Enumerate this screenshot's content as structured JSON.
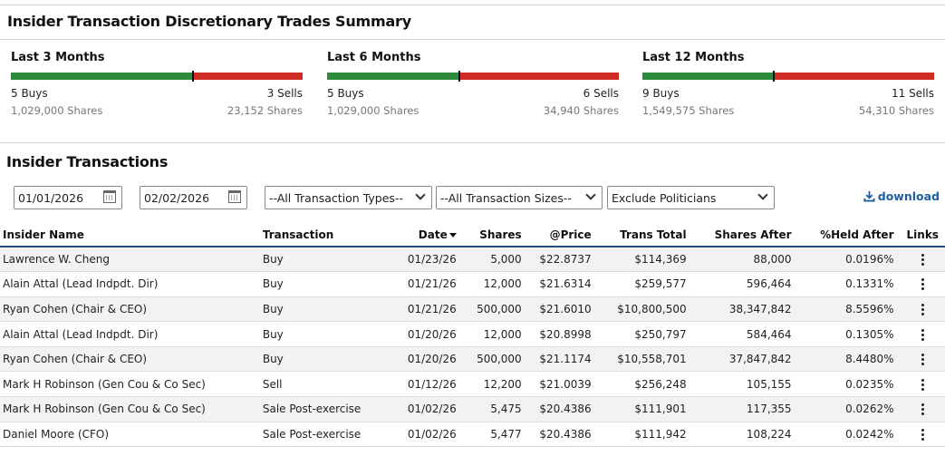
{
  "summary": {
    "title": "Insider Transaction Discretionary Trades Summary",
    "periods": [
      {
        "label": "Last 3 Months",
        "buys": "5 Buys",
        "sells": "3 Sells",
        "buy_shares": "1,029,000 Shares",
        "sell_shares": "23,152 Shares",
        "buy_fraction": 0.625
      },
      {
        "label": "Last 6 Months",
        "buys": "5 Buys",
        "sells": "6 Sells",
        "buy_shares": "1,029,000 Shares",
        "sell_shares": "34,940 Shares",
        "buy_fraction": 0.4545
      },
      {
        "label": "Last 12 Months",
        "buys": "9 Buys",
        "sells": "11 Sells",
        "buy_shares": "1,549,575 Shares",
        "sell_shares": "54,310 Shares",
        "buy_fraction": 0.45
      }
    ],
    "buy_color": "#2e8b3e",
    "sell_color": "#cf2b25"
  },
  "transactions": {
    "title": "Insider Transactions",
    "filters": {
      "date_from": "01/01/2026",
      "date_to": "02/02/2026",
      "type": "--All Transaction Types--",
      "size": "--All Transaction Sizes--",
      "politicians": "Exclude Politicians"
    },
    "download_label": "download",
    "columns": [
      "Insider Name",
      "Transaction",
      "Date",
      "Shares",
      "@Price",
      "Trans Total",
      "Shares After",
      "%Held After",
      "Links"
    ],
    "rows": [
      {
        "name": "Lawrence W. Cheng",
        "type": "Buy",
        "date": "01/23/26",
        "shares": "5,000",
        "price": "$22.8737",
        "total": "$114,369",
        "after": "88,000",
        "held": "0.0196%"
      },
      {
        "name": "Alain Attal (Lead Indpdt. Dir)",
        "type": "Buy",
        "date": "01/21/26",
        "shares": "12,000",
        "price": "$21.6314",
        "total": "$259,577",
        "after": "596,464",
        "held": "0.1331%"
      },
      {
        "name": "Ryan Cohen (Chair & CEO)",
        "type": "Buy",
        "date": "01/21/26",
        "shares": "500,000",
        "price": "$21.6010",
        "total": "$10,800,500",
        "after": "38,347,842",
        "held": "8.5596%"
      },
      {
        "name": "Alain Attal (Lead Indpdt. Dir)",
        "type": "Buy",
        "date": "01/20/26",
        "shares": "12,000",
        "price": "$20.8998",
        "total": "$250,797",
        "after": "584,464",
        "held": "0.1305%"
      },
      {
        "name": "Ryan Cohen (Chair & CEO)",
        "type": "Buy",
        "date": "01/20/26",
        "shares": "500,000",
        "price": "$21.1174",
        "total": "$10,558,701",
        "after": "37,847,842",
        "held": "8.4480%"
      },
      {
        "name": "Mark H Robinson (Gen Cou & Co Sec)",
        "type": "Sell",
        "date": "01/12/26",
        "shares": "12,200",
        "price": "$21.0039",
        "total": "$256,248",
        "after": "105,155",
        "held": "0.0235%"
      },
      {
        "name": "Mark H Robinson (Gen Cou & Co Sec)",
        "type": "Sale Post-exercise",
        "date": "01/02/26",
        "shares": "5,475",
        "price": "$20.4386",
        "total": "$111,901",
        "after": "117,355",
        "held": "0.0262%"
      },
      {
        "name": "Daniel Moore (CFO)",
        "type": "Sale Post-exercise",
        "date": "01/02/26",
        "shares": "5,477",
        "price": "$20.4386",
        "total": "$111,942",
        "after": "108,224",
        "held": "0.0242%"
      }
    ]
  }
}
